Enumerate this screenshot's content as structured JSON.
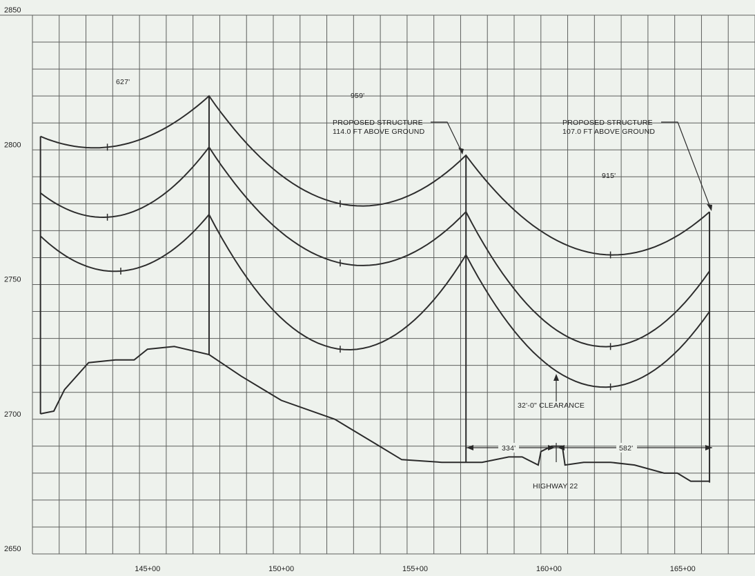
{
  "axis": {
    "y_ticks": [
      "2850",
      "2800",
      "2750",
      "2700",
      "2650"
    ],
    "x_ticks": [
      "145+00",
      "150+00",
      "155+00",
      "160+00",
      "165+00"
    ]
  },
  "annotations": {
    "span1": "627'",
    "span2": "959'",
    "span3": "915'",
    "structure1_line1": "PROPOSED STRUCTURE",
    "structure1_line2": "114.0 FT ABOVE GROUND",
    "structure2_line1": "PROPOSED STRUCTURE",
    "structure2_line2": "107.0 FT ABOVE GROUND",
    "clearance": "32'-0\" CLEARANCE",
    "dim1": "334'",
    "dim2": "582'",
    "highway": "HIGHWAY 22"
  },
  "chart_data": {
    "type": "line",
    "title": "",
    "xlabel": "",
    "ylabel": "",
    "x_unit": "station",
    "ylim": [
      2650,
      2850
    ],
    "x_ticks": [
      "145+00",
      "150+00",
      "155+00",
      "160+00",
      "165+00"
    ],
    "structures": [
      {
        "station": 141.0,
        "top": 2805
      },
      {
        "station": 147.3,
        "top": 2820
      },
      {
        "station": 156.9,
        "top": 2798
      },
      {
        "station": 166.0,
        "top": 2777
      }
    ],
    "series": [
      {
        "x": [
          141.0,
          143.5,
          147.3,
          152.2,
          156.9,
          162.3,
          166.0
        ],
        "y": [
          2805,
          2801,
          2820,
          2780,
          2798,
          2761,
          2777
        ]
      },
      {
        "x": [
          141.0,
          143.5,
          147.3,
          152.2,
          156.9,
          162.3,
          166.0
        ],
        "y": [
          2784,
          2775,
          2801,
          2758,
          2777,
          2727,
          2755
        ]
      },
      {
        "x": [
          141.0,
          144.0,
          147.3,
          152.2,
          156.9,
          162.3,
          166.0
        ],
        "y": [
          2768,
          2755,
          2776,
          2726,
          2761,
          2712,
          2740
        ]
      }
    ],
    "ground_profile": {
      "x": [
        141.0,
        141.5,
        141.9,
        142.8,
        143.8,
        144.5,
        145.0,
        146.0,
        147.3,
        148.5,
        150.0,
        152.0,
        153.5,
        154.5,
        156.0,
        157.5,
        158.5,
        159.0,
        159.6,
        159.7,
        160.1,
        160.5,
        160.6,
        161.3,
        162.3,
        163.2,
        164.3,
        164.8,
        165.3,
        166.0
      ],
      "y": [
        2702,
        2703,
        2711,
        2721,
        2722,
        2722,
        2726,
        2727,
        2724,
        2716,
        2707,
        2700,
        2691,
        2685,
        2684,
        2684,
        2686,
        2686,
        2683,
        2688,
        2690,
        2690,
        2683,
        2684,
        2684,
        2683,
        2680,
        2680,
        2677,
        2677
      ]
    }
  }
}
